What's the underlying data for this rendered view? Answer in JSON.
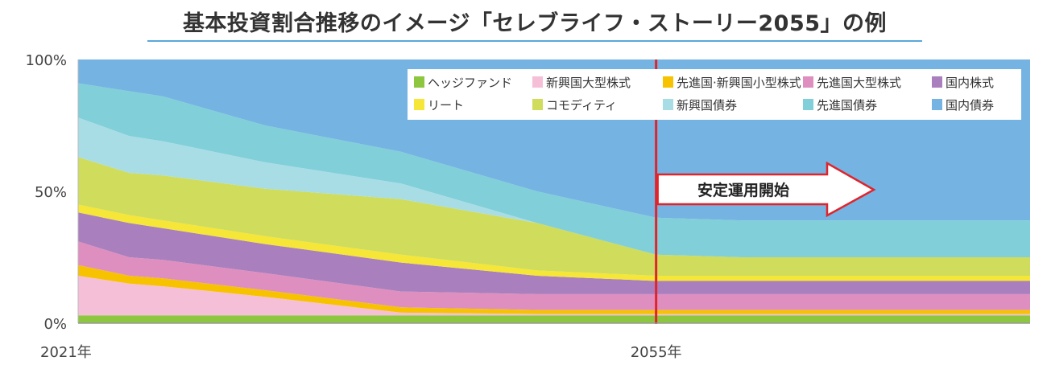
{
  "title": "基本投資割合推移のイメージ「セレブライフ・ストーリー2055」の例",
  "chart_data": {
    "type": "area",
    "stacked": true,
    "normalized_to_percent": true,
    "x": [
      2021,
      2024,
      2026,
      2032,
      2040,
      2048,
      2055,
      2060,
      2065,
      2070,
      2077
    ],
    "xticks": [
      {
        "value": 2021,
        "label": "2021年"
      },
      {
        "value": 2055,
        "label": "2055年"
      }
    ],
    "yticks": [
      {
        "value": 0,
        "label": "0%"
      },
      {
        "value": 50,
        "label": "50%"
      },
      {
        "value": 100,
        "label": "100%"
      }
    ],
    "ylim": [
      0,
      100
    ],
    "xlim": [
      2021,
      2077
    ],
    "marker": {
      "x": 2055,
      "color": "#e0242b"
    },
    "annotation": {
      "text": "安定運用開始",
      "direction": "right"
    },
    "legend_position": "top-right",
    "series": [
      {
        "name": "ヘッジファンド",
        "color": "#8dc63f",
        "values": [
          3,
          3,
          3,
          3,
          3,
          3,
          3,
          3,
          3,
          3,
          3
        ]
      },
      {
        "name": "新興国大型株式",
        "color": "#f6bfd8",
        "values": [
          15,
          12,
          11,
          7,
          1,
          0.5,
          0.5,
          0.5,
          0.5,
          0.5,
          0.5
        ]
      },
      {
        "name": "先進国·新興国小型株式",
        "color": "#f7c200",
        "values": [
          4,
          3,
          3,
          2.5,
          2,
          1.5,
          1.5,
          1.5,
          1.5,
          1.5,
          1.5
        ]
      },
      {
        "name": "先進国大型株式",
        "color": "#df8fbf",
        "values": [
          9,
          7,
          7,
          6.5,
          6,
          6,
          6,
          6,
          6,
          6,
          6
        ]
      },
      {
        "name": "国内株式",
        "color": "#a97fbd",
        "values": [
          11,
          13,
          12,
          11,
          11,
          7,
          5,
          5,
          5,
          5,
          5
        ]
      },
      {
        "name": "リート",
        "color": "#f5e637",
        "values": [
          3,
          3,
          3,
          3,
          3,
          2,
          2,
          2,
          2,
          2,
          2
        ]
      },
      {
        "name": "コモディティ",
        "color": "#cfdc5c",
        "values": [
          18,
          16,
          17,
          18,
          21,
          18,
          8,
          7,
          7,
          7,
          7
        ]
      },
      {
        "name": "新興国債券",
        "color": "#a9dde5",
        "values": [
          15,
          14,
          13,
          10,
          6,
          0,
          0,
          0,
          0,
          0,
          0
        ]
      },
      {
        "name": "先進国債券",
        "color": "#80cfd9",
        "values": [
          13,
          17,
          17,
          14,
          12,
          12,
          14,
          14,
          14,
          14,
          14
        ]
      },
      {
        "name": "国内債券",
        "color": "#74b3e2",
        "values": [
          9,
          12,
          14,
          25,
          35,
          50,
          60,
          61,
          61,
          61,
          61
        ]
      }
    ]
  }
}
